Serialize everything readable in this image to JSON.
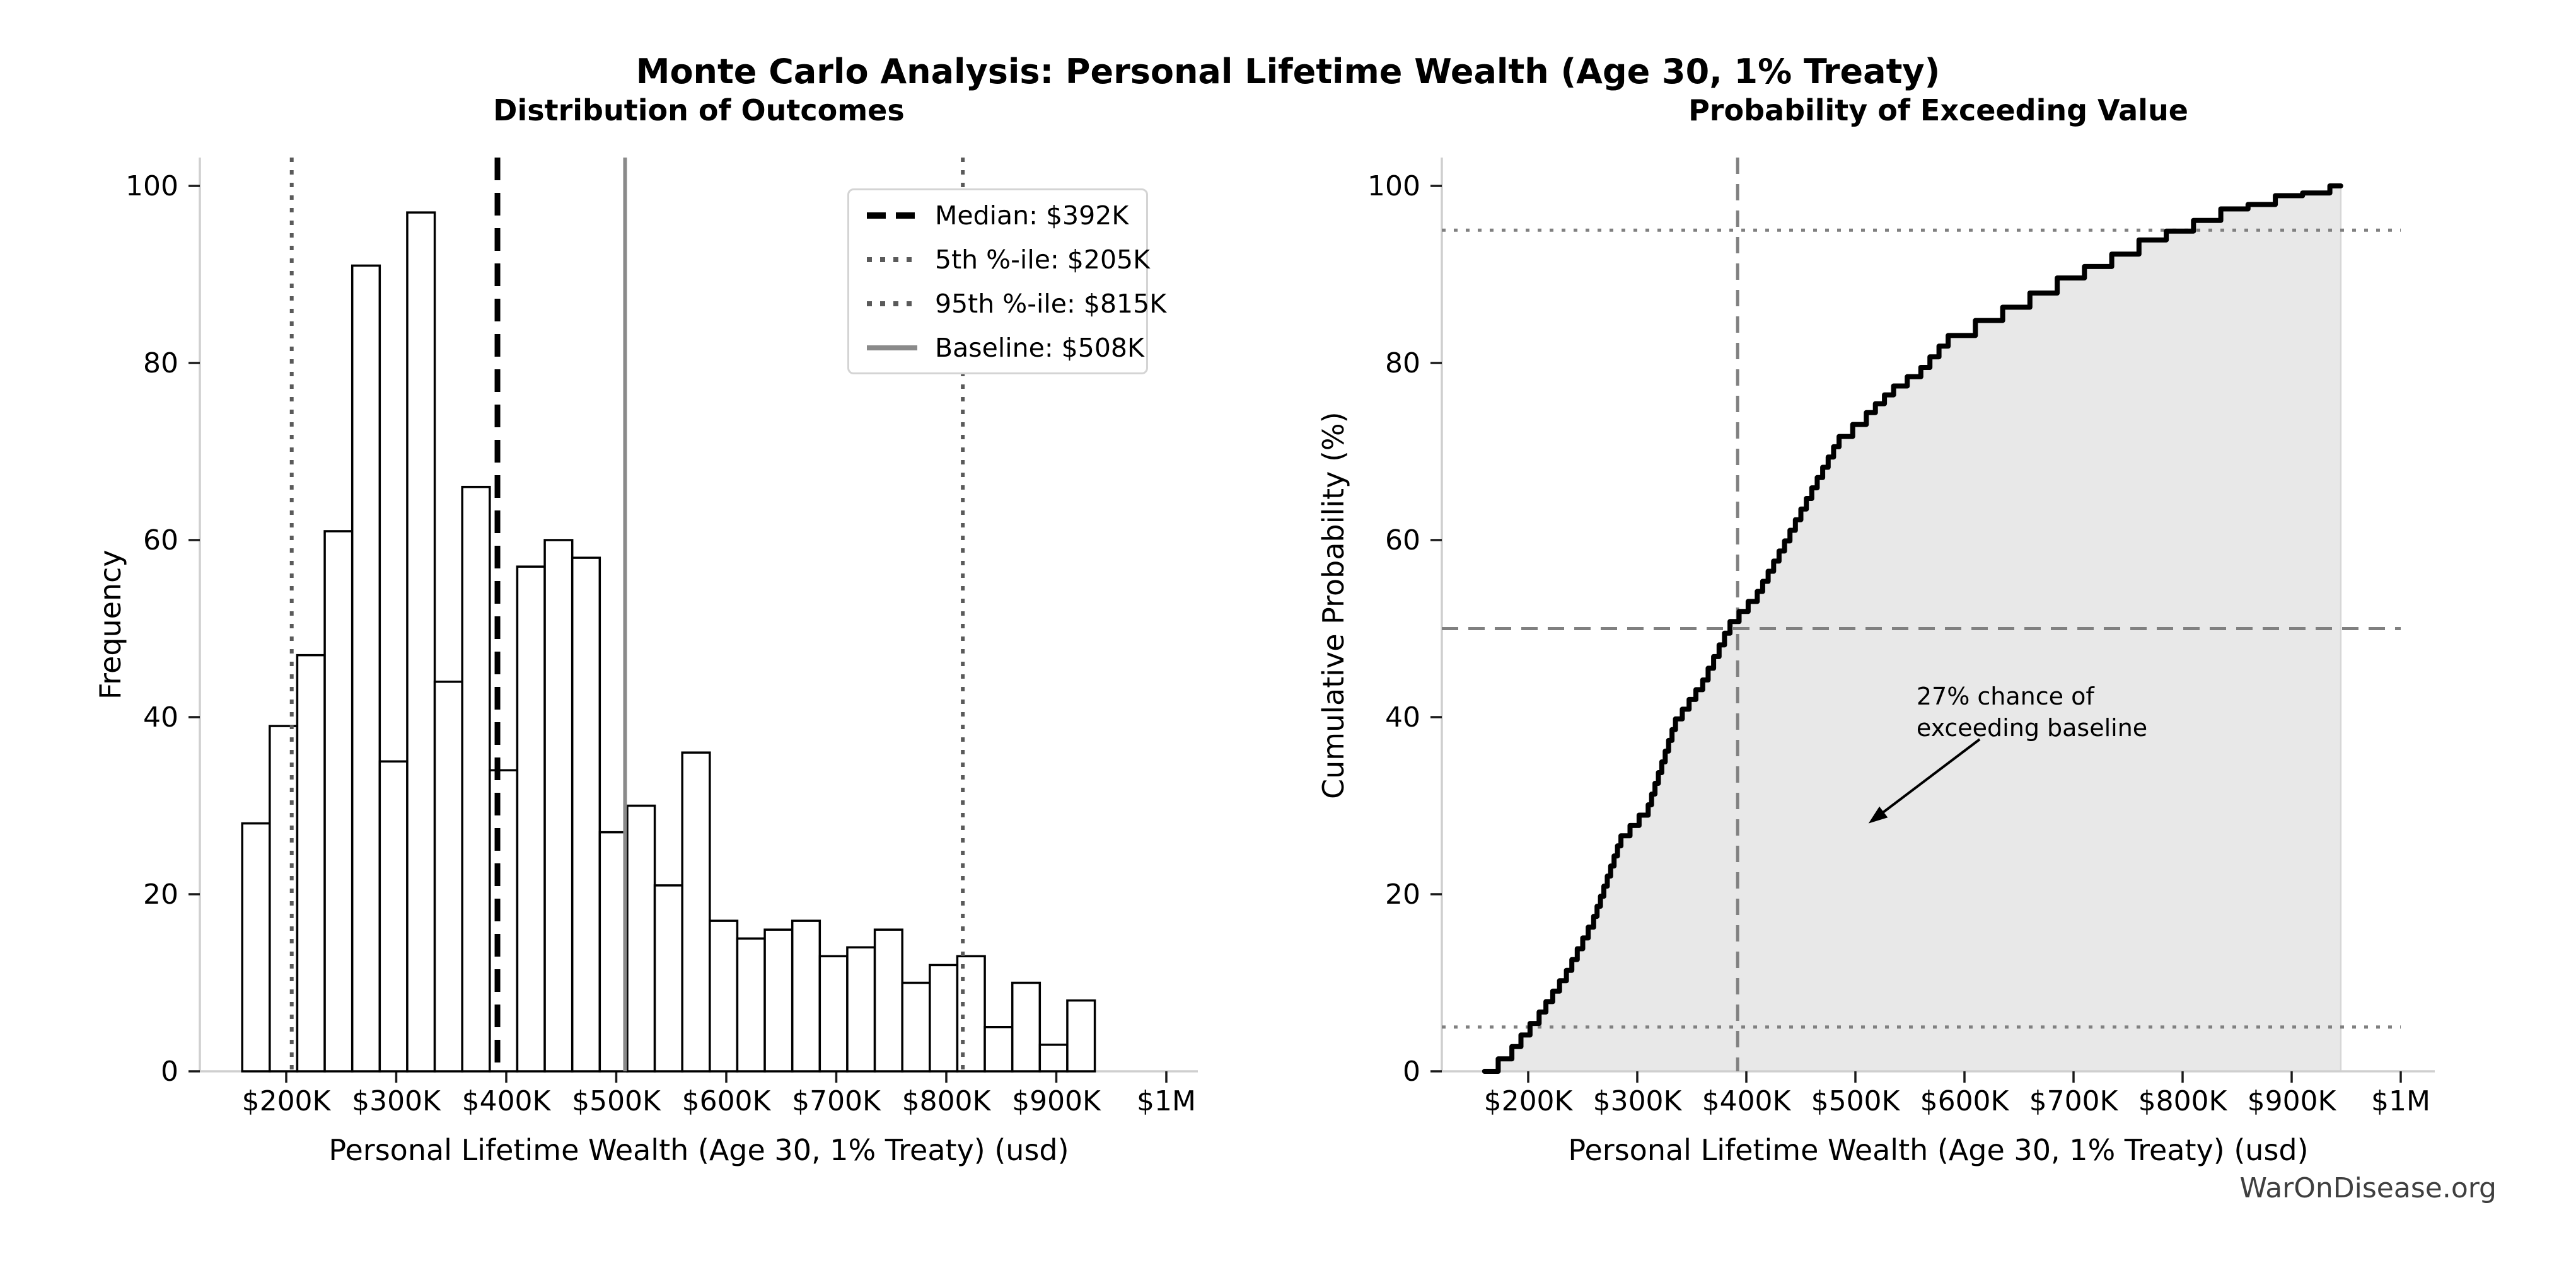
{
  "figure": {
    "title": "Monte Carlo Analysis: Personal Lifetime Wealth (Age 30, 1% Treaty)",
    "watermark": "WarOnDisease.org",
    "background_color": "#ffffff",
    "text_color": "#000000"
  },
  "chart_data": [
    {
      "type": "bar",
      "subtype": "histogram",
      "title": "Distribution of Outcomes",
      "xlabel": "Personal Lifetime Wealth (Age 30, 1% Treaty) (usd)",
      "ylabel": "Frequency",
      "x_tick_labels": [
        "$200K",
        "$300K",
        "$400K",
        "$500K",
        "$600K",
        "$700K",
        "$800K",
        "$900K",
        "$1M"
      ],
      "x_tick_values_usd_k": [
        200,
        300,
        400,
        500,
        600,
        700,
        800,
        900,
        1000
      ],
      "y_tick_values": [
        0,
        20,
        40,
        60,
        80,
        100
      ],
      "xlim_usd_k": [
        121,
        1030
      ],
      "ylim": [
        0,
        103
      ],
      "grid": false,
      "bin_start_usd_k": 160,
      "bin_width_usd_k": 25,
      "frequencies": [
        28,
        39,
        47,
        61,
        91,
        35,
        97,
        44,
        66,
        34,
        57,
        60,
        58,
        27,
        30,
        21,
        36,
        17,
        15,
        16,
        17,
        13,
        14,
        16,
        10,
        12,
        13,
        5,
        10,
        3,
        8
      ],
      "total_samples": 1000,
      "bar_fill": "#ffffff",
      "bar_edge": "#000000",
      "legend_position": "upper right",
      "reference_lines": [
        {
          "label": "Median: $392K",
          "value_usd_k": 392,
          "style": "dashed",
          "color": "#000000",
          "width": 9
        },
        {
          "label": "5th %-ile: $205K",
          "value_usd_k": 205,
          "style": "dotted",
          "color": "#5a5a5a",
          "width": 6
        },
        {
          "label": "95th %-ile: $815K",
          "value_usd_k": 815,
          "style": "dotted",
          "color": "#5a5a5a",
          "width": 6
        },
        {
          "label": "Baseline: $508K",
          "value_usd_k": 508,
          "style": "solid",
          "color": "#8a8a8a",
          "width": 6
        }
      ]
    },
    {
      "type": "line",
      "subtype": "ecdf-step",
      "title": "Probability of Exceeding Value",
      "xlabel": "Personal Lifetime Wealth (Age 30, 1% Treaty) (usd)",
      "ylabel": "Cumulative Probability (%)",
      "x_tick_labels": [
        "$200K",
        "$300K",
        "$400K",
        "$500K",
        "$600K",
        "$700K",
        "$800K",
        "$900K",
        "$1M"
      ],
      "x_tick_values_usd_k": [
        200,
        300,
        400,
        500,
        600,
        700,
        800,
        900,
        1000
      ],
      "y_tick_values": [
        0,
        20,
        40,
        60,
        80,
        100
      ],
      "xlim_usd_k": [
        121,
        1030
      ],
      "ylim_pct": [
        0,
        103
      ],
      "grid": false,
      "line_color": "#000000",
      "fill_color": "#e8e8e8",
      "ecdf_points": [
        [
          160,
          0
        ],
        [
          185,
          2.8
        ],
        [
          210,
          6.7
        ],
        [
          235,
          11.4
        ],
        [
          260,
          17.5
        ],
        [
          285,
          26.6
        ],
        [
          310,
          30.1
        ],
        [
          335,
          39.8
        ],
        [
          360,
          44.2
        ],
        [
          385,
          50.8
        ],
        [
          410,
          54.2
        ],
        [
          435,
          59.9
        ],
        [
          460,
          65.9
        ],
        [
          485,
          71.7
        ],
        [
          510,
          74.4
        ],
        [
          535,
          77.4
        ],
        [
          560,
          79.5
        ],
        [
          585,
          83.1
        ],
        [
          610,
          84.8
        ],
        [
          635,
          86.3
        ],
        [
          660,
          87.9
        ],
        [
          685,
          89.6
        ],
        [
          710,
          90.9
        ],
        [
          735,
          92.3
        ],
        [
          760,
          93.9
        ],
        [
          785,
          94.9
        ],
        [
          810,
          96.1
        ],
        [
          835,
          97.4
        ],
        [
          860,
          97.9
        ],
        [
          885,
          98.9
        ],
        [
          910,
          99.2
        ],
        [
          935,
          100
        ],
        [
          945,
          100
        ]
      ],
      "h_lines": [
        {
          "value_pct": 5,
          "style": "dotted",
          "color": "#808080",
          "width": 5
        },
        {
          "value_pct": 50,
          "style": "dashed",
          "color": "#808080",
          "width": 5
        },
        {
          "value_pct": 95,
          "style": "dotted",
          "color": "#808080",
          "width": 5
        }
      ],
      "v_lines": [
        {
          "value_usd_k": 392,
          "style": "dashed",
          "color": "#808080",
          "width": 5
        }
      ],
      "annotation": {
        "lines": [
          "27% chance of",
          "exceeding baseline"
        ],
        "text_at_usd_k_pct": [
          556,
          44
        ],
        "arrow_from_usd_k_pct": [
          614,
          37.5
        ],
        "arrow_to_usd_k_pct": [
          512,
          28
        ]
      }
    }
  ]
}
